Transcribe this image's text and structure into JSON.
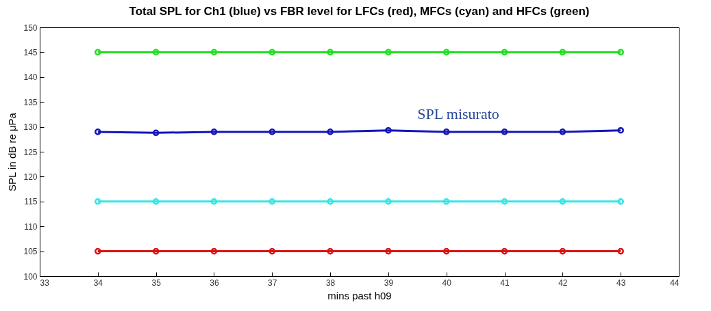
{
  "chart_data": {
    "type": "line",
    "title": "Total SPL for Ch1 (blue) vs FBR level for LFCs (red), MFCs (cyan) and HFCs (green)",
    "xlabel": "mins past h09",
    "ylabel": "SPL in dB re μPa",
    "x": [
      34,
      35,
      36,
      37,
      38,
      39,
      40,
      41,
      42,
      43
    ],
    "series": [
      {
        "color": "#22dd22",
        "values": [
          145,
          145,
          145,
          145,
          145,
          145,
          145,
          145,
          145,
          145
        ]
      },
      {
        "color": "#1414b8",
        "values": [
          129,
          128.8,
          129,
          129,
          129,
          129.3,
          129,
          129,
          129,
          129.3
        ]
      },
      {
        "color": "#33e6e6",
        "values": [
          115,
          115,
          115,
          115,
          115,
          115,
          115,
          115,
          115,
          115
        ]
      },
      {
        "color": "#dd1111",
        "values": [
          105,
          105,
          105,
          105,
          105,
          105,
          105,
          105,
          105,
          105
        ]
      }
    ],
    "xlim": [
      33,
      44
    ],
    "xticks": [
      33,
      34,
      35,
      36,
      37,
      38,
      39,
      40,
      41,
      42,
      43,
      44
    ],
    "ylim": [
      100,
      150
    ],
    "yticks": [
      100,
      105,
      110,
      115,
      120,
      125,
      130,
      135,
      140,
      145,
      150
    ],
    "grid": false,
    "legend": false,
    "marker": "circle",
    "line_style": "solid",
    "annotations": [
      "SPL misurato"
    ]
  }
}
